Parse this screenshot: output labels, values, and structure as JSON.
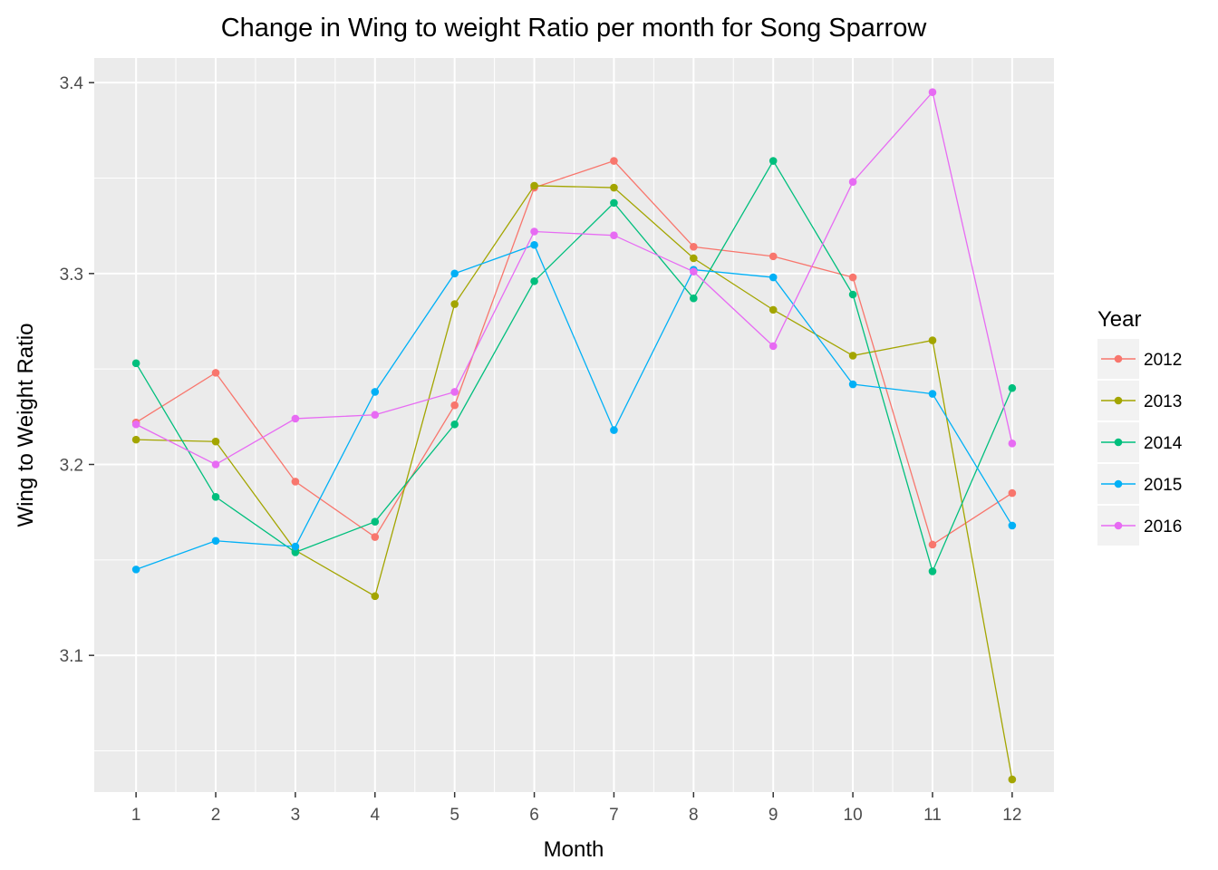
{
  "chart_data": {
    "type": "line",
    "title": "Change in Wing to weight Ratio per month for Song Sparrow",
    "xlabel": "Month",
    "ylabel": "Wing to Weight Ratio",
    "x": [
      1,
      2,
      3,
      4,
      5,
      6,
      7,
      8,
      9,
      10,
      11,
      12
    ],
    "x_tick_labels": [
      "1",
      "2",
      "3",
      "4",
      "5",
      "6",
      "7",
      "8",
      "9",
      "10",
      "11",
      "12"
    ],
    "xlim": [
      0.475,
      12.525
    ],
    "y_ticks": [
      3.1,
      3.2,
      3.3,
      3.4
    ],
    "y_tick_labels": [
      "3.1",
      "3.2",
      "3.3",
      "3.4"
    ],
    "ylim": [
      3.0284,
      3.4129
    ],
    "grid": true,
    "panel_background": "#ebebeb",
    "legend_title": "Year",
    "legend_position": "right",
    "series": [
      {
        "name": "2012",
        "color": "#F8766D",
        "values": [
          3.222,
          3.248,
          3.191,
          3.162,
          3.231,
          3.345,
          3.359,
          3.314,
          3.309,
          3.298,
          3.158,
          3.185
        ]
      },
      {
        "name": "2013",
        "color": "#A3A500",
        "values": [
          3.213,
          3.212,
          3.155,
          3.131,
          3.284,
          3.346,
          3.345,
          3.308,
          3.281,
          3.257,
          3.265,
          3.035
        ]
      },
      {
        "name": "2014",
        "color": "#00BF7D",
        "values": [
          3.253,
          3.183,
          3.154,
          3.17,
          3.221,
          3.296,
          3.337,
          3.287,
          3.359,
          3.289,
          3.144,
          3.24
        ]
      },
      {
        "name": "2015",
        "color": "#00B0F6",
        "values": [
          3.145,
          3.16,
          3.157,
          3.238,
          3.3,
          3.315,
          3.218,
          3.302,
          3.298,
          3.242,
          3.237,
          3.168
        ]
      },
      {
        "name": "2016",
        "color": "#E76BF3",
        "values": [
          3.221,
          3.2,
          3.224,
          3.226,
          3.238,
          3.322,
          3.32,
          3.301,
          3.262,
          3.348,
          3.395,
          3.211
        ]
      }
    ]
  }
}
